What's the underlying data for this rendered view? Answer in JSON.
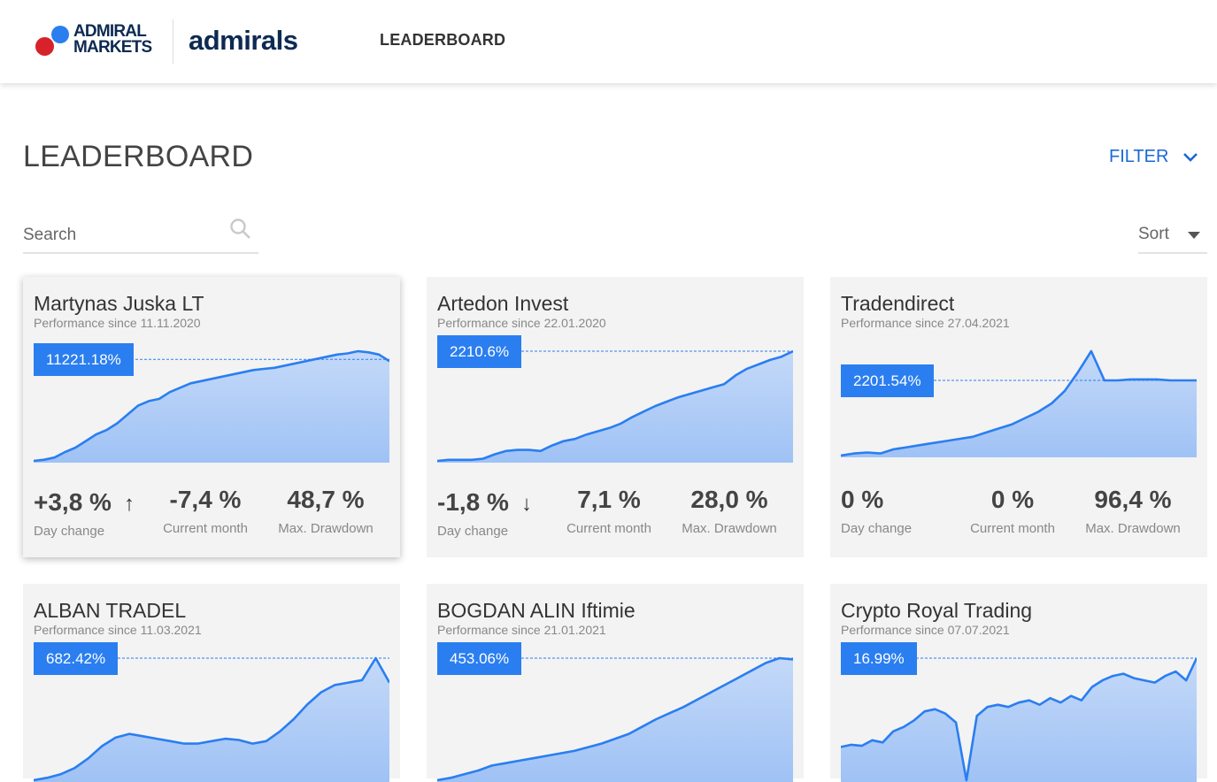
{
  "header": {
    "brand_line1": "ADMIRAL",
    "brand_line2": "MARKETS",
    "brand_secondary": "admirals",
    "nav_label": "LEADERBOARD",
    "colors": {
      "brand_navy": "#0d2a52",
      "brand_blue": "#2a7ef0",
      "brand_red": "#d7222c"
    }
  },
  "page": {
    "title": "LEADERBOARD",
    "filter_label": "FILTER",
    "search_placeholder": "Search",
    "sort_label": "Sort"
  },
  "cards": [
    {
      "name": "Martynas Juska LT",
      "since": "Performance since 11.11.2020",
      "badge": "11221.18%",
      "day_change": "+3,8 %",
      "day_arrow": "↑",
      "day_label": "Day change",
      "current_month": "-7,4 %",
      "current_month_label": "Current month",
      "max_drawdown": "48,7 %",
      "max_drawdown_label": "Max. Drawdown",
      "chart_values": [
        0,
        1,
        3,
        8,
        12,
        18,
        24,
        28,
        34,
        42,
        50,
        54,
        56,
        62,
        66,
        70,
        72,
        74,
        76,
        78,
        80,
        82,
        83,
        84,
        86,
        88,
        90,
        92,
        94,
        96,
        97,
        99,
        98,
        96,
        90
      ]
    },
    {
      "name": "Artedon Invest",
      "since": "Performance since 22.01.2020",
      "badge": "2210.6%",
      "day_change": "-1,8 %",
      "day_arrow": "↓",
      "day_label": "Day change",
      "current_month": "7,1 %",
      "current_month_label": "Current month",
      "max_drawdown": "28,0 %",
      "max_drawdown_label": "Max. Drawdown",
      "chart_values": [
        0,
        1,
        1,
        1,
        2,
        6,
        9,
        10,
        10,
        9,
        14,
        18,
        20,
        24,
        27,
        30,
        34,
        40,
        45,
        50,
        54,
        58,
        61,
        64,
        67,
        70,
        78,
        84,
        88,
        92,
        95,
        100
      ]
    },
    {
      "name": "Tradendirect",
      "since": "Performance since 27.04.2021",
      "badge": "2201.54%",
      "day_change": "0 %",
      "day_arrow": "",
      "day_label": "Day change",
      "current_month": "0 %",
      "current_month_label": "Current month",
      "max_drawdown": "96,4 %",
      "max_drawdown_label": "Max. Drawdown",
      "chart_values": [
        0,
        2,
        3,
        2,
        6,
        8,
        10,
        12,
        14,
        16,
        18,
        22,
        26,
        30,
        36,
        42,
        50,
        62,
        80,
        100,
        72,
        72,
        73,
        73,
        73,
        72,
        72,
        72
      ]
    },
    {
      "name": "ALBAN TRADEL",
      "since": "Performance since 11.03.2021",
      "badge": "682.42%",
      "day_change": "",
      "day_arrow": "",
      "day_label": "",
      "current_month": "",
      "current_month_label": "",
      "max_drawdown": "",
      "max_drawdown_label": "",
      "chart_values": [
        0,
        2,
        5,
        10,
        18,
        28,
        35,
        38,
        36,
        34,
        32,
        30,
        30,
        32,
        34,
        33,
        30,
        32,
        40,
        50,
        62,
        72,
        78,
        80,
        82,
        100,
        80
      ]
    },
    {
      "name": "BOGDAN ALIN Iftimie",
      "since": "Performance since 21.01.2021",
      "badge": "453.06%",
      "day_change": "",
      "day_arrow": "",
      "day_label": "",
      "current_month": "",
      "current_month_label": "",
      "max_drawdown": "",
      "max_drawdown_label": "",
      "chart_values": [
        0,
        2,
        5,
        8,
        12,
        14,
        16,
        18,
        20,
        22,
        24,
        27,
        30,
        34,
        38,
        44,
        50,
        55,
        60,
        66,
        72,
        78,
        84,
        90,
        96,
        100,
        99
      ]
    },
    {
      "name": "Crypto Royal Trading",
      "since": "Performance since 07.07.2021",
      "badge": "16.99%",
      "day_change": "",
      "day_arrow": "",
      "day_label": "",
      "current_month": "",
      "current_month_label": "",
      "max_drawdown": "",
      "max_drawdown_label": "",
      "chart_values": [
        20,
        22,
        21,
        26,
        24,
        34,
        38,
        44,
        52,
        54,
        50,
        42,
        -10,
        48,
        56,
        58,
        56,
        60,
        62,
        58,
        64,
        60,
        66,
        62,
        74,
        80,
        84,
        86,
        82,
        80,
        78,
        84,
        88,
        80,
        100
      ]
    }
  ]
}
